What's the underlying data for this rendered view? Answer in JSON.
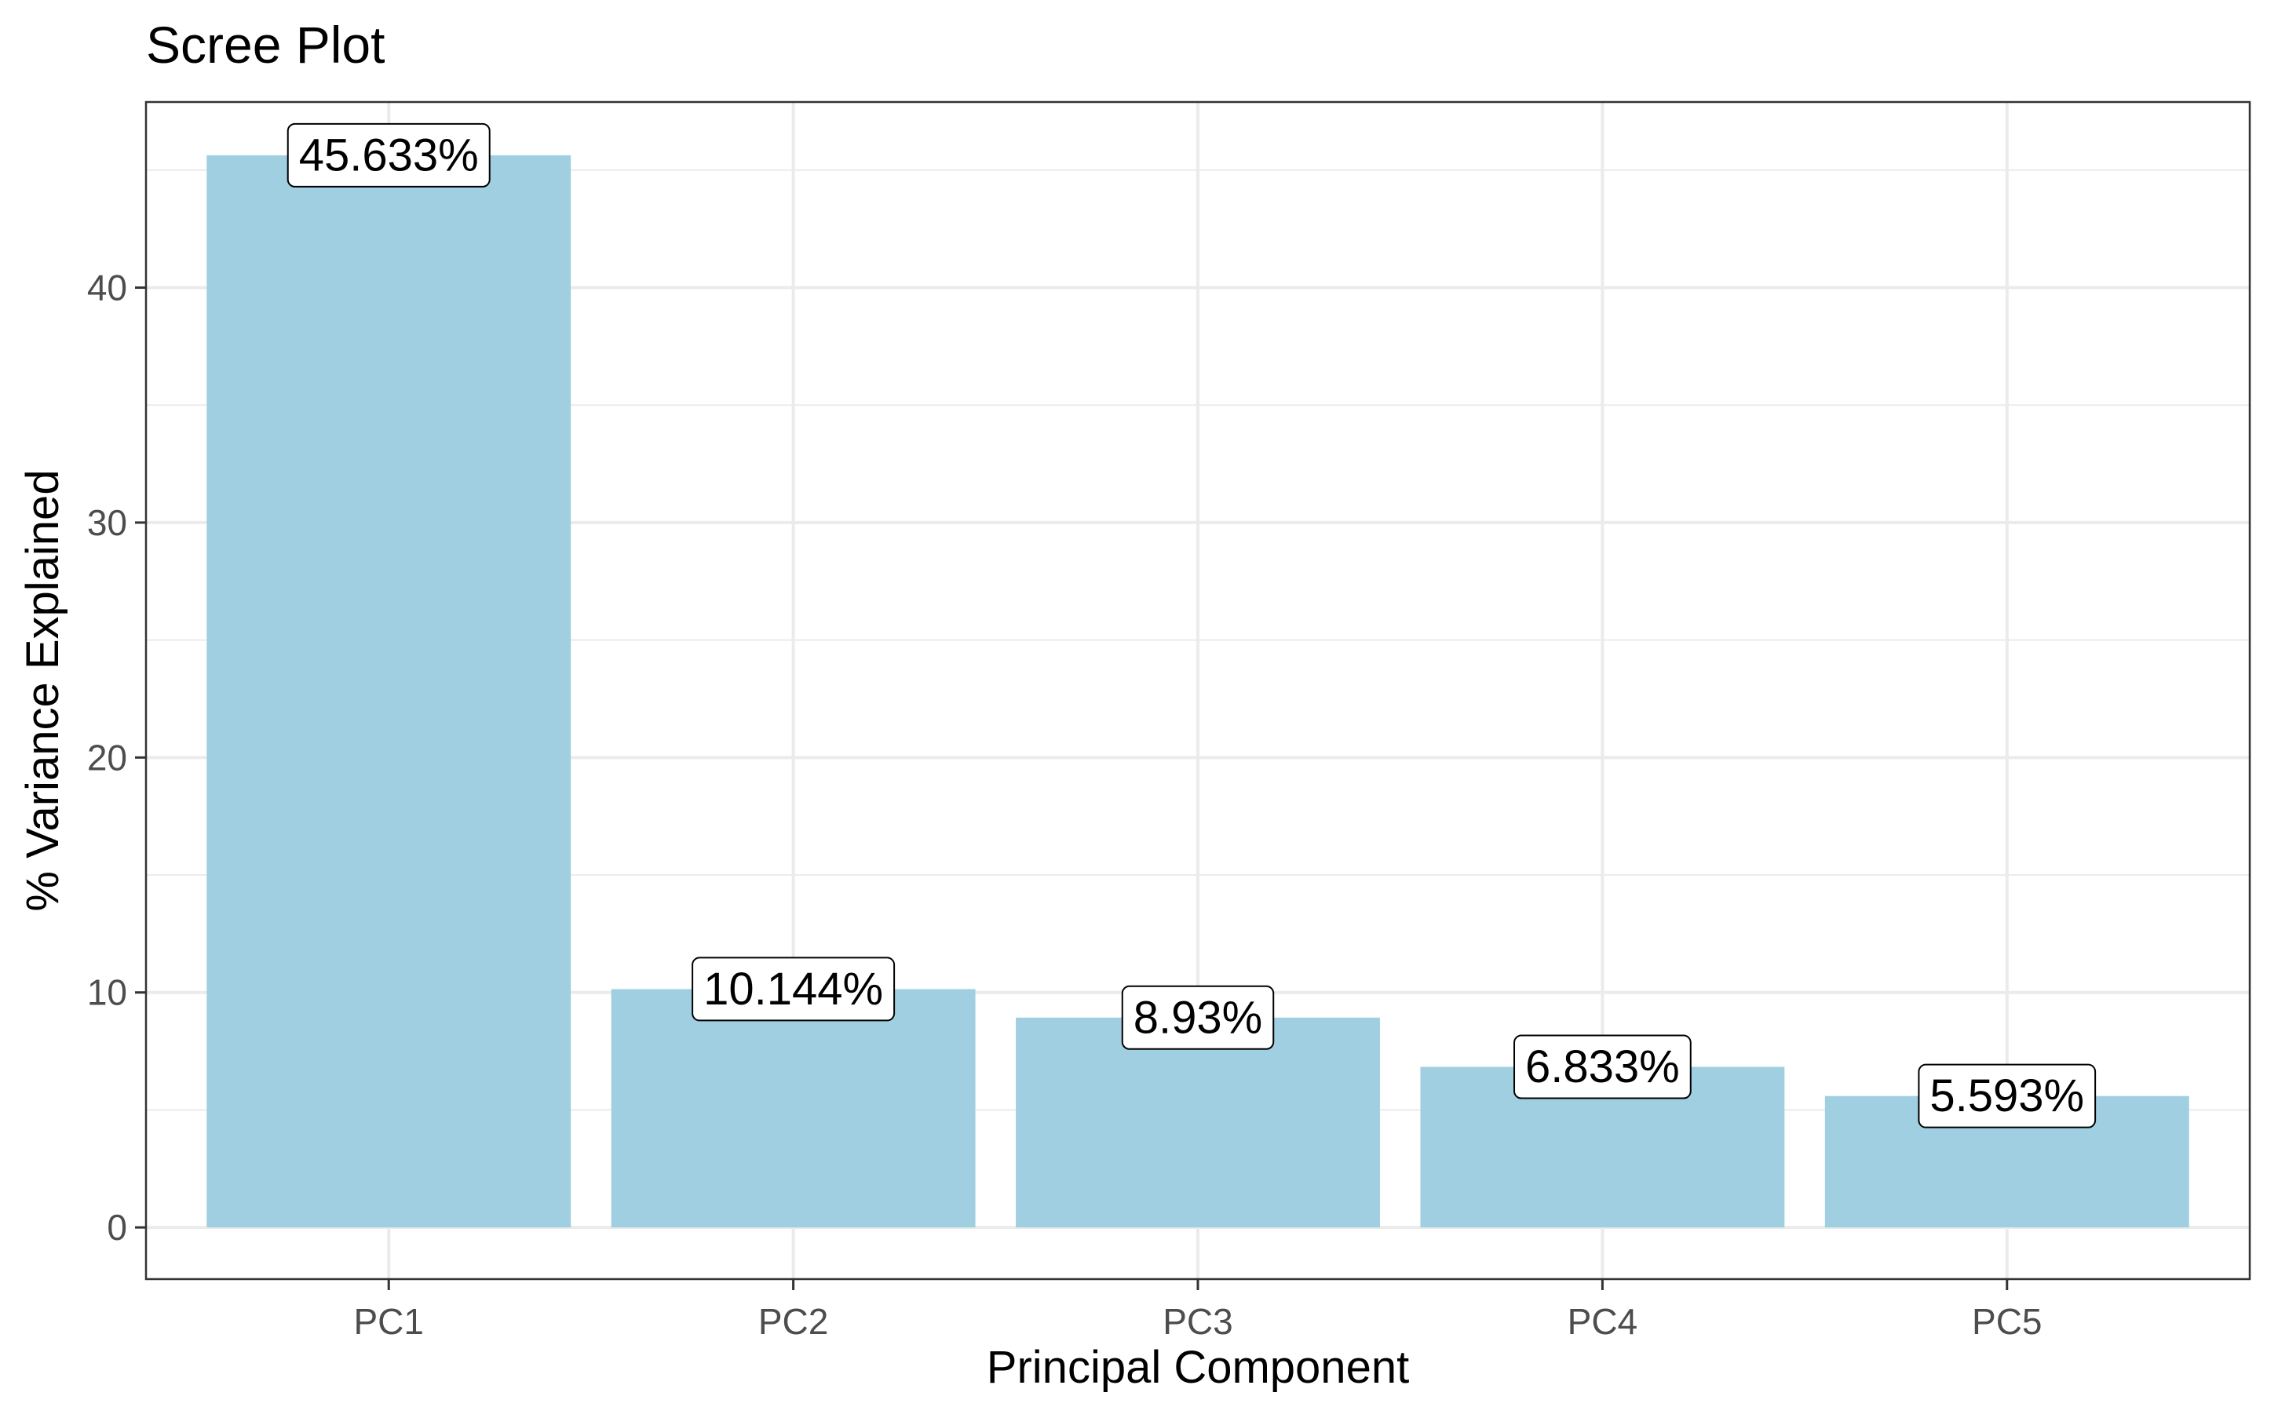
{
  "chart_data": {
    "type": "bar",
    "title": "Scree Plot",
    "xlabel": "Principal Component",
    "ylabel": "% Variance Explained",
    "categories": [
      "PC1",
      "PC2",
      "PC3",
      "PC4",
      "PC5"
    ],
    "values": [
      45.633,
      10.144,
      8.93,
      6.833,
      5.593
    ],
    "data_labels": [
      "45.633%",
      "10.144%",
      "8.93%",
      "6.833%",
      "5.593%"
    ],
    "ylim": [
      -2.2,
      47.9
    ],
    "yticks": [
      0,
      10,
      20,
      30,
      40
    ],
    "ytick_labels": [
      "0",
      "10",
      "20",
      "30",
      "40"
    ],
    "grid": true,
    "legend": "none",
    "colors": {
      "bar": "#9fcfe0",
      "grid": "#ebebeb",
      "panel_border": "#333333",
      "tick_label": "#4d4d4d"
    }
  }
}
